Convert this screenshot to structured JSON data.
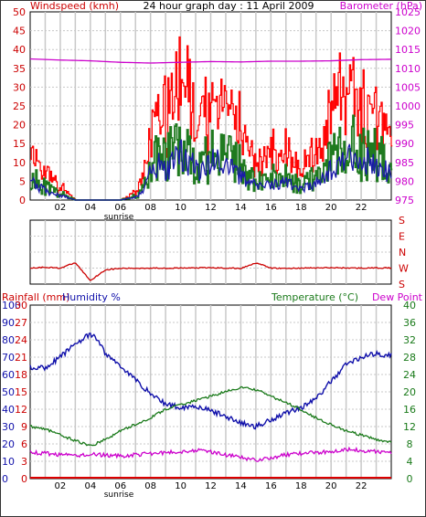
{
  "title": "24 hour graph day : 11 April 2009",
  "colors": {
    "windspeed": "#cc0000",
    "gust": "#ff0000",
    "avg_wind": "#1a1aaa",
    "wind_green": "#1f7a1f",
    "barometer": "#cc00cc",
    "direction": "#cc0000",
    "humidity": "#1010aa",
    "temperature": "#1a7a1a",
    "dewpoint": "#cc00cc",
    "rain": "#dd0000"
  },
  "top": {
    "left_label": "Windspeed (kmh)",
    "right_label": "Barometer (hPa)",
    "left_ticks": [
      "0",
      "5",
      "10",
      "15",
      "20",
      "25",
      "30",
      "35",
      "40",
      "45",
      "50"
    ],
    "right_ticks": [
      "975",
      "980",
      "985",
      "990",
      "995",
      "1000",
      "1005",
      "1010",
      "1015",
      "1020",
      "1025"
    ],
    "x_ticks": [
      "02",
      "04",
      "06",
      "08",
      "10",
      "12",
      "14",
      "16",
      "18",
      "20",
      "22"
    ],
    "sunrise": "sunrise"
  },
  "mid": {
    "right_ticks": [
      "S",
      "E",
      "N",
      "W",
      "S"
    ]
  },
  "bottom": {
    "rain_label": "Rainfall (mm)",
    "hum_label": "Humidity %",
    "temp_label": "Temperature (°C)",
    "dew_label": "Dew Point",
    "hum_ticks": [
      "0",
      "10",
      "20",
      "30",
      "40",
      "50",
      "60",
      "70",
      "80",
      "90",
      "100"
    ],
    "rain_ticks": [
      "0",
      "3",
      "6",
      "9",
      "12",
      "15",
      "18",
      "21",
      "24",
      "27",
      "30"
    ],
    "right_ticks": [
      "0",
      "4",
      "8",
      "12",
      "16",
      "20",
      "24",
      "28",
      "32",
      "36",
      "40"
    ],
    "x_ticks": [
      "02",
      "04",
      "06",
      "08",
      "10",
      "12",
      "14",
      "16",
      "18",
      "20",
      "22"
    ],
    "sunrise": "sunrise"
  },
  "chart_data": [
    {
      "type": "line",
      "title": "24 hour graph day : 11 April 2009",
      "ylabel": "Windspeed (kmh)",
      "ylabel_right": "Barometer (hPa)",
      "xlim": [
        0,
        24
      ],
      "ylim": [
        0,
        50
      ],
      "ylim_right": [
        975,
        1025
      ],
      "x_ticks": [
        "02",
        "04",
        "06",
        "08",
        "10",
        "12",
        "14",
        "16",
        "18",
        "20",
        "22"
      ],
      "grid": true,
      "series": [
        {
          "name": "Windspeed (kmh)",
          "axis": "left",
          "x": [
            0,
            0.5,
            1,
            1.5,
            2,
            3,
            4,
            5,
            6,
            7,
            7.5,
            8,
            8.5,
            9,
            9.5,
            10,
            10.5,
            11,
            11.5,
            12,
            12.5,
            13,
            13.5,
            14,
            14.5,
            15,
            15.5,
            16,
            16.5,
            17,
            17.5,
            18,
            18.5,
            19,
            19.5,
            20,
            20.5,
            21,
            21.5,
            22,
            22.5,
            23,
            23.5,
            24
          ],
          "values": [
            14,
            9,
            6,
            4,
            3,
            0,
            0,
            0,
            0,
            2,
            5,
            17,
            22,
            20,
            23,
            28,
            25,
            19,
            18,
            22,
            26,
            20,
            21,
            15,
            12,
            8,
            9,
            11,
            10,
            12,
            9,
            7,
            10,
            11,
            13,
            20,
            22,
            24,
            26,
            21,
            25,
            22,
            19,
            16
          ]
        },
        {
          "name": "Barometer (hPa)",
          "axis": "right",
          "x": [
            0,
            2,
            4,
            6,
            8,
            10,
            12,
            14,
            16,
            18,
            20,
            22,
            24
          ],
          "values": [
            1012.5,
            1012.2,
            1012.0,
            1011.6,
            1011.4,
            1011.6,
            1011.8,
            1011.7,
            1011.9,
            1011.9,
            1012.0,
            1012.3,
            1012.4
          ]
        }
      ]
    },
    {
      "type": "line",
      "title": "",
      "ylabel": "Wind direction",
      "xlim": [
        0,
        24
      ],
      "y_categories": [
        "S",
        "E",
        "N",
        "W",
        "S"
      ],
      "grid": true,
      "series": [
        {
          "name": "Wind direction",
          "x": [
            0,
            1,
            2,
            3,
            4,
            5,
            6,
            8,
            10,
            12,
            14,
            15,
            16,
            17,
            18,
            20,
            22,
            24
          ],
          "values": [
            270,
            275,
            270,
            300,
            200,
            260,
            268,
            270,
            270,
            272,
            268,
            300,
            270,
            268,
            270,
            272,
            270,
            271
          ]
        }
      ]
    },
    {
      "type": "line",
      "title": "",
      "ylabel": "Rainfall (mm) / Humidity %",
      "ylabel_right": "Temperature (°C) / Dew Point",
      "xlim": [
        0,
        24
      ],
      "ylim": [
        0,
        100
      ],
      "ylim_rain": [
        0,
        30
      ],
      "ylim_right": [
        0,
        40
      ],
      "x_ticks": [
        "02",
        "04",
        "06",
        "08",
        "10",
        "12",
        "14",
        "16",
        "18",
        "20",
        "22"
      ],
      "grid": true,
      "series": [
        {
          "name": "Humidity %",
          "axis": "left",
          "x": [
            0,
            1,
            2,
            3,
            4,
            4.5,
            5,
            6,
            7,
            8,
            9,
            10,
            11,
            12,
            13,
            14,
            15,
            16,
            17,
            18,
            19,
            20,
            21,
            22,
            23,
            24
          ],
          "values": [
            64,
            64,
            70,
            78,
            83,
            80,
            72,
            65,
            57,
            49,
            43,
            41,
            42,
            39,
            36,
            32,
            30,
            34,
            38,
            41,
            46,
            56,
            66,
            70,
            72,
            71
          ]
        },
        {
          "name": "Temperature (°C)",
          "axis": "right",
          "x": [
            0,
            1,
            2,
            3,
            4,
            5,
            6,
            7,
            8,
            9,
            10,
            11,
            12,
            13,
            14,
            15,
            16,
            17,
            18,
            19,
            20,
            21,
            22,
            23,
            24
          ],
          "values": [
            12,
            11.5,
            10,
            8.8,
            7.5,
            9,
            11,
            12.5,
            14,
            16,
            17,
            18,
            19,
            20,
            21,
            20.5,
            19,
            17.5,
            16,
            14,
            12.5,
            11,
            10,
            9,
            8.5
          ]
        },
        {
          "name": "Dew Point",
          "axis": "right",
          "x": [
            0,
            1,
            2,
            3,
            4,
            5,
            6,
            7,
            8,
            9,
            10,
            11,
            12,
            13,
            14,
            15,
            16,
            17,
            18,
            19,
            20,
            21,
            22,
            23,
            24
          ],
          "values": [
            6,
            5.8,
            5.5,
            5.3,
            5.6,
            5.4,
            5.2,
            5.5,
            5.8,
            6,
            6.2,
            6.6,
            6.2,
            5.5,
            4.8,
            4.3,
            4.8,
            5.5,
            5.8,
            6,
            6.3,
            6.8,
            6.5,
            6.2,
            6
          ]
        },
        {
          "name": "Rainfall (mm)",
          "axis": "rain",
          "x": [
            0,
            24
          ],
          "values": [
            0,
            0
          ]
        }
      ]
    }
  ]
}
